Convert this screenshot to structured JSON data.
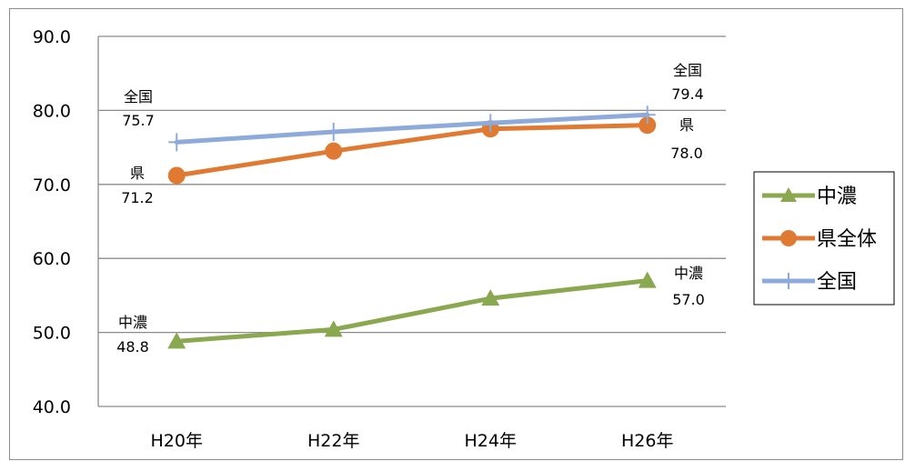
{
  "chart_data": {
    "type": "line",
    "categories": [
      "H20年",
      "H22年",
      "H24年",
      "H26年"
    ],
    "ylim": [
      40,
      90
    ],
    "y_ticks": [
      "40.0",
      "50.0",
      "60.0",
      "70.0",
      "80.0",
      "90.0"
    ],
    "grid": true,
    "legend_position": "right",
    "series": [
      {
        "name": "中濃",
        "values": [
          48.8,
          50.4,
          54.6,
          57.0
        ],
        "color": "#8aa84f",
        "marker": "triangle"
      },
      {
        "name": "県全体",
        "values": [
          71.2,
          74.5,
          77.5,
          78.0
        ],
        "color": "#e07a33",
        "marker": "circle"
      },
      {
        "name": "全国",
        "values": [
          75.7,
          77.1,
          78.3,
          79.4
        ],
        "color": "#8eaadb",
        "marker": "plus"
      }
    ],
    "annotations": {
      "zenkoku_start_name": "全国",
      "zenkoku_start_value": "75.7",
      "zenkoku_end_name": "全国",
      "zenkoku_end_value": "79.4",
      "ken_start_name": "県",
      "ken_start_value": "71.2",
      "ken_end_name": "県",
      "ken_end_value": "78.0",
      "chuno_start_name": "中濃",
      "chuno_start_value": "48.8",
      "chuno_end_name": "中濃",
      "chuno_end_value": "57.0"
    }
  }
}
